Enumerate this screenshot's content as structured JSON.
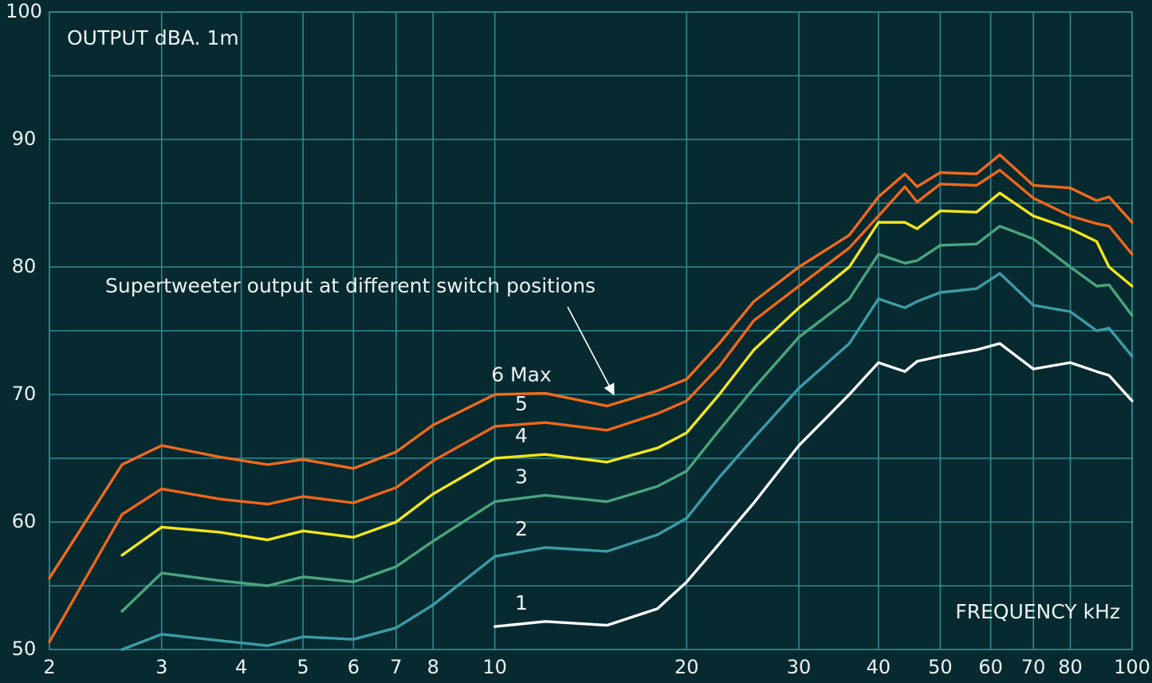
{
  "chart_data": {
    "type": "line",
    "y_label": "OUTPUT dBA. 1m",
    "x_label": "FREQUENCY kHz",
    "annotation": "Supertweeter output at different switch positions",
    "x_scale": "log",
    "x": [
      2,
      2.6,
      3,
      3.7,
      4.4,
      5,
      6,
      7,
      8,
      10,
      12,
      15,
      18,
      20,
      22.5,
      25.5,
      30,
      36,
      40,
      44,
      46,
      50,
      57,
      62,
      70,
      80,
      88,
      92,
      100
    ],
    "xlim": [
      2,
      100
    ],
    "xticks": [
      2,
      3,
      4,
      5,
      6,
      7,
      8,
      10,
      20,
      30,
      40,
      50,
      60,
      70,
      80,
      100
    ],
    "ylim": [
      50,
      100
    ],
    "yticks": [
      50,
      60,
      70,
      80,
      90,
      100
    ],
    "grid": true,
    "series": [
      {
        "name": "6 Max",
        "color": "#f26a1b",
        "values": [
          55.6,
          64.5,
          66,
          65.1,
          64.5,
          64.9,
          64.2,
          65.5,
          67.6,
          70,
          70.1,
          69.1,
          70.3,
          71.2,
          74,
          77.3,
          80,
          82.5,
          85.5,
          87.3,
          86.3,
          87.4,
          87.3,
          88.8,
          86.4,
          86.2,
          85.2,
          85.5,
          83.5
        ]
      },
      {
        "name": "5",
        "color": "#f0661a",
        "values": [
          50.6,
          60.6,
          62.6,
          61.8,
          61.4,
          62,
          61.5,
          62.7,
          64.8,
          67.5,
          67.8,
          67.2,
          68.5,
          69.5,
          72.2,
          75.8,
          78.5,
          81.5,
          84,
          86.3,
          85.1,
          86.5,
          86.4,
          87.6,
          85.4,
          84,
          83.4,
          83.2,
          81
        ]
      },
      {
        "name": "4",
        "color": "#f5e61a",
        "values": [
          null,
          57.4,
          59.6,
          59.2,
          58.6,
          59.3,
          58.8,
          60,
          62.2,
          65,
          65.3,
          64.7,
          65.8,
          67,
          70,
          73.5,
          76.8,
          80,
          83.5,
          83.5,
          83,
          84.4,
          84.3,
          85.8,
          84,
          83,
          82,
          80,
          78.5
        ]
      },
      {
        "name": "3",
        "color": "#4aa57e",
        "values": [
          null,
          53,
          56,
          55.4,
          55,
          55.7,
          55.3,
          56.5,
          58.5,
          61.6,
          62.1,
          61.6,
          62.8,
          64,
          67.2,
          70.5,
          74.5,
          77.5,
          81,
          80.3,
          80.5,
          81.7,
          81.8,
          83.2,
          82.2,
          80,
          78.5,
          78.6,
          76.2
        ]
      },
      {
        "name": "2",
        "color": "#3d9ba8",
        "values": [
          null,
          50,
          51.2,
          50.7,
          50.3,
          51,
          50.8,
          51.7,
          53.5,
          57.3,
          58,
          57.7,
          59,
          60.3,
          63.5,
          66.6,
          70.5,
          74,
          77.5,
          76.8,
          77.3,
          78,
          78.3,
          79.5,
          77,
          76.5,
          75,
          75.2,
          73
        ]
      },
      {
        "name": "1",
        "color": "#ffffff",
        "values": [
          null,
          null,
          null,
          null,
          null,
          null,
          null,
          null,
          null,
          51.8,
          52.2,
          51.9,
          53.2,
          55.3,
          58.3,
          61.5,
          66,
          70,
          72.5,
          71.8,
          72.6,
          73,
          73.5,
          74,
          72,
          72.5,
          71.8,
          71.5,
          69.5
        ]
      }
    ]
  }
}
